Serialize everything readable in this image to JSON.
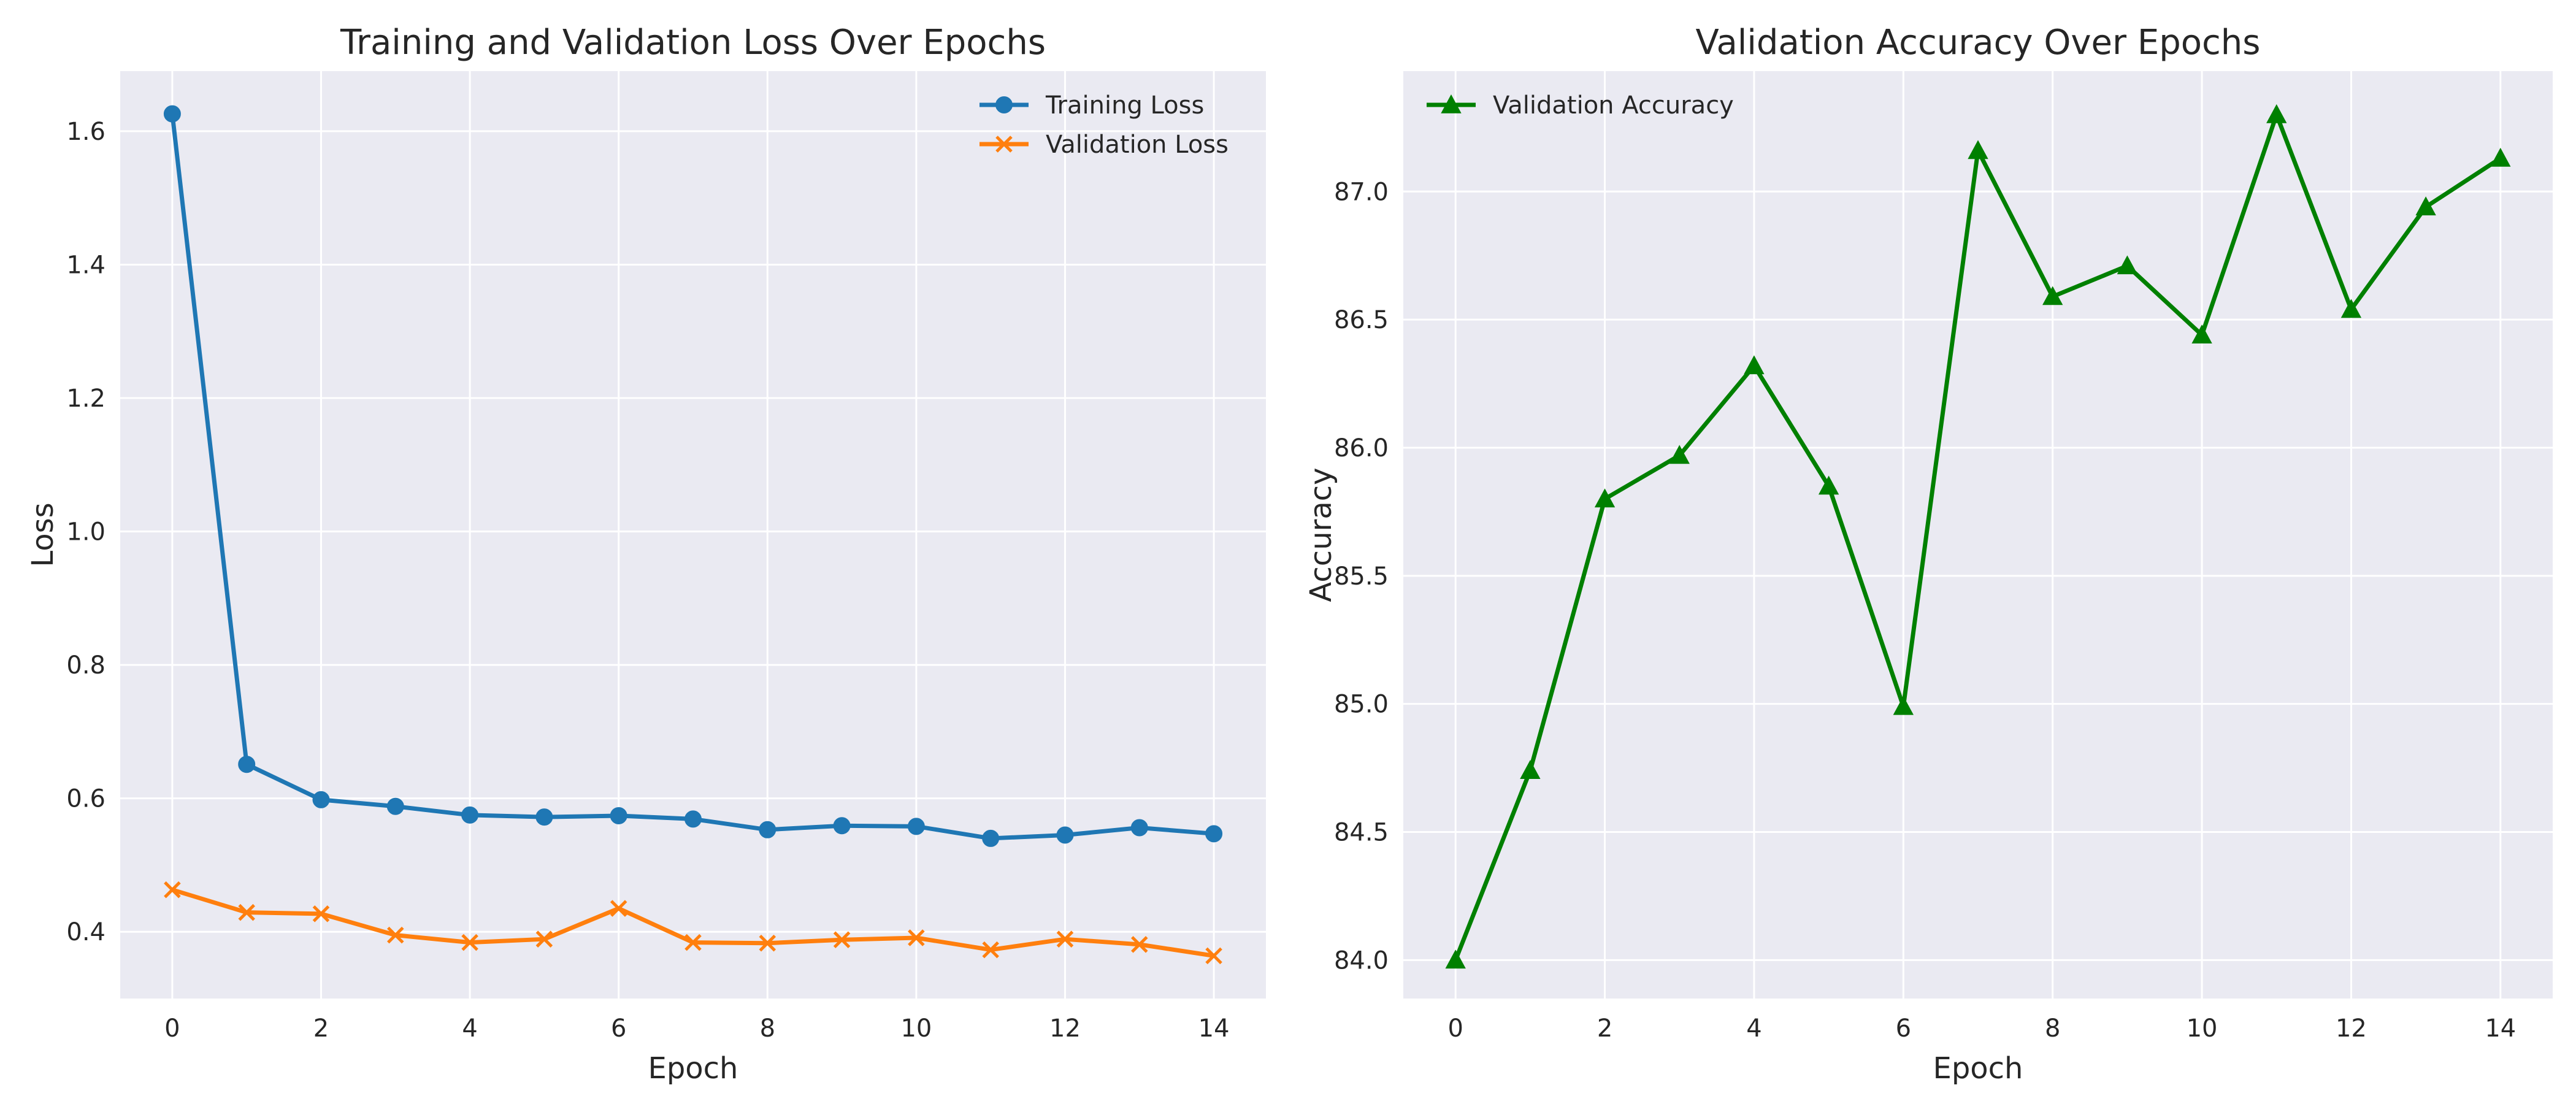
{
  "chart_data": [
    {
      "type": "line",
      "title": "Training and Validation Loss Over Epochs",
      "xlabel": "Epoch",
      "ylabel": "Loss",
      "x": [
        0,
        1,
        2,
        3,
        4,
        5,
        6,
        7,
        8,
        9,
        10,
        11,
        12,
        13,
        14
      ],
      "xlim": [
        -0.7,
        14.7
      ],
      "ylim": [
        0.3,
        1.69
      ],
      "xticks": [
        0,
        2,
        4,
        6,
        8,
        10,
        12,
        14
      ],
      "yticks": [
        0.4,
        0.6,
        0.8,
        1.0,
        1.2,
        1.4,
        1.6
      ],
      "ytick_labels": [
        "0.4",
        "0.6",
        "0.8",
        "1.0",
        "1.2",
        "1.4",
        "1.6"
      ],
      "grid": true,
      "legend": "top-right",
      "series": [
        {
          "name": "Training Loss",
          "color": "#1f77b4",
          "marker": "circle",
          "values": [
            1.626,
            0.651,
            0.598,
            0.588,
            0.575,
            0.572,
            0.574,
            0.569,
            0.553,
            0.559,
            0.558,
            0.54,
            0.545,
            0.556,
            0.547
          ]
        },
        {
          "name": "Validation Loss",
          "color": "#ff7f0e",
          "marker": "x",
          "values": [
            0.463,
            0.429,
            0.427,
            0.395,
            0.384,
            0.389,
            0.435,
            0.384,
            0.383,
            0.388,
            0.391,
            0.373,
            0.389,
            0.381,
            0.364
          ]
        }
      ]
    },
    {
      "type": "line",
      "title": "Validation Accuracy Over Epochs",
      "xlabel": "Epoch",
      "ylabel": "Accuracy",
      "x": [
        0,
        1,
        2,
        3,
        4,
        5,
        6,
        7,
        8,
        9,
        10,
        11,
        12,
        13,
        14
      ],
      "xlim": [
        -0.7,
        14.7
      ],
      "ylim": [
        83.85,
        87.47
      ],
      "xticks": [
        0,
        2,
        4,
        6,
        8,
        10,
        12,
        14
      ],
      "yticks": [
        84.0,
        84.5,
        85.0,
        85.5,
        86.0,
        86.5,
        87.0
      ],
      "ytick_labels": [
        "84.0",
        "84.5",
        "85.0",
        "85.5",
        "86.0",
        "86.5",
        "87.0"
      ],
      "grid": true,
      "legend": "top-left",
      "series": [
        {
          "name": "Validation Accuracy",
          "color": "#008000",
          "marker": "triangle",
          "values": [
            84.0,
            84.74,
            85.8,
            85.97,
            86.32,
            85.85,
            84.99,
            87.16,
            86.59,
            86.71,
            86.44,
            87.3,
            86.54,
            86.94,
            87.13
          ]
        }
      ]
    }
  ]
}
